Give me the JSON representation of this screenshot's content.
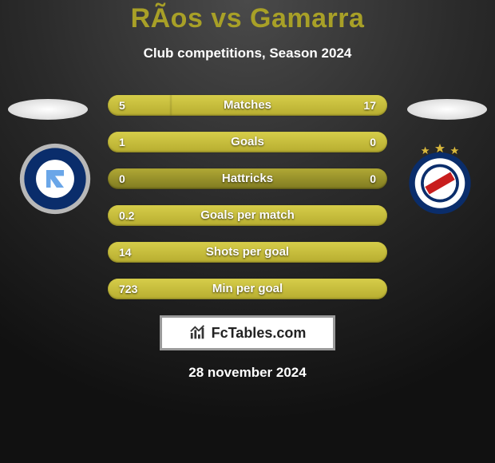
{
  "title": "RÃos vs Gamarra",
  "subtitle": "Club competitions, Season 2024",
  "date": "28 november 2024",
  "brand": "FcTables.com",
  "colors": {
    "accent": "#a8a027",
    "bar_base_top": "#b0a835",
    "bar_base_bot": "#7f7a20",
    "bar_fill_top": "#d6cd4a",
    "bar_fill_bot": "#b7ad30",
    "text": "#ffffff",
    "bg_center": "#4a4a4a",
    "bg_outer": "#111111"
  },
  "crest_left": {
    "outer": "#b8b8b8",
    "ring": "#0a2d6b",
    "inner": "#ffffff",
    "accent": "#6aa6e8"
  },
  "crest_right": {
    "outer": "#ffffff",
    "ring": "#0a2d6b",
    "inner": "#ffffff",
    "flag_bg": "#ffffff",
    "flag_stripe": "#c81e1e",
    "star": "#d9b83c"
  },
  "rows": [
    {
      "label": "Matches",
      "left": "5",
      "right": "17",
      "left_pct": 22.7,
      "right_pct": 77.3
    },
    {
      "label": "Goals",
      "left": "1",
      "right": "0",
      "left_pct": 100,
      "right_pct": 0
    },
    {
      "label": "Hattricks",
      "left": "0",
      "right": "0",
      "left_pct": 0,
      "right_pct": 0
    },
    {
      "label": "Goals per match",
      "left": "0.2",
      "right": "",
      "left_pct": 100,
      "right_pct": 0
    },
    {
      "label": "Shots per goal",
      "left": "14",
      "right": "",
      "left_pct": 100,
      "right_pct": 0
    },
    {
      "label": "Min per goal",
      "left": "723",
      "right": "",
      "left_pct": 100,
      "right_pct": 0
    }
  ]
}
